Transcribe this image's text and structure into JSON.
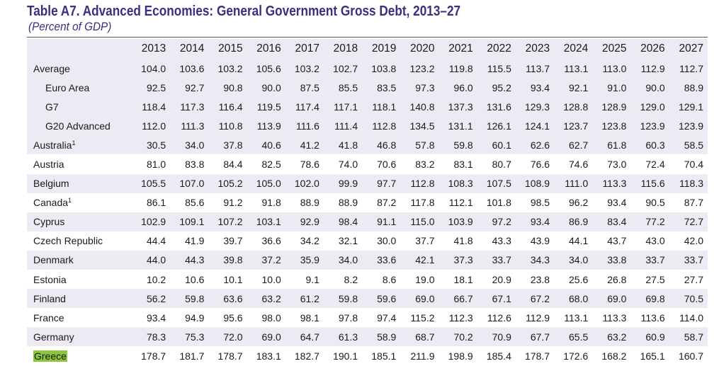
{
  "title": "Table A7. Advanced Economies: General Government Gross Debt, 2013–27",
  "subtitle": "(Percent of GDP)",
  "years": [
    "2013",
    "2014",
    "2015",
    "2016",
    "2017",
    "2018",
    "2019",
    "2020",
    "2021",
    "2022",
    "2023",
    "2024",
    "2025",
    "2026",
    "2027"
  ],
  "rows": [
    {
      "name": "Average",
      "note": "",
      "highlight": false,
      "values": [
        "104.0",
        "103.6",
        "103.2",
        "105.6",
        "103.2",
        "102.7",
        "103.8",
        "123.2",
        "119.8",
        "115.5",
        "113.7",
        "113.1",
        "113.0",
        "112.9",
        "112.7"
      ]
    },
    {
      "name": "Euro Area",
      "note": "",
      "highlight": false,
      "values": [
        "92.5",
        "92.7",
        "90.8",
        "90.0",
        "87.5",
        "85.5",
        "83.5",
        "97.3",
        "96.0",
        "95.2",
        "93.4",
        "92.1",
        "91.0",
        "90.0",
        "88.9"
      ]
    },
    {
      "name": "G7",
      "note": "",
      "highlight": false,
      "values": [
        "118.4",
        "117.3",
        "116.4",
        "119.5",
        "117.4",
        "117.1",
        "118.1",
        "140.8",
        "137.3",
        "131.6",
        "129.3",
        "128.8",
        "128.9",
        "129.0",
        "129.1"
      ]
    },
    {
      "name": "G20 Advanced",
      "note": "",
      "highlight": false,
      "values": [
        "112.0",
        "111.3",
        "110.8",
        "113.9",
        "111.6",
        "111.4",
        "112.8",
        "134.5",
        "131.1",
        "126.1",
        "124.1",
        "123.7",
        "123.8",
        "123.9",
        "123.9"
      ]
    },
    {
      "name": "Australia",
      "note": "1",
      "highlight": false,
      "values": [
        "30.5",
        "34.0",
        "37.8",
        "40.6",
        "41.2",
        "41.8",
        "46.8",
        "57.8",
        "59.8",
        "60.1",
        "62.6",
        "62.7",
        "61.8",
        "60.3",
        "58.5"
      ]
    },
    {
      "name": "Austria",
      "note": "",
      "highlight": false,
      "values": [
        "81.0",
        "83.8",
        "84.4",
        "82.5",
        "78.6",
        "74.0",
        "70.6",
        "83.2",
        "83.1",
        "80.7",
        "76.6",
        "74.6",
        "73.0",
        "72.4",
        "70.4"
      ]
    },
    {
      "name": "Belgium",
      "note": "",
      "highlight": false,
      "values": [
        "105.5",
        "107.0",
        "105.2",
        "105.0",
        "102.0",
        "99.9",
        "97.7",
        "112.8",
        "108.3",
        "107.5",
        "108.9",
        "111.0",
        "113.3",
        "115.6",
        "118.3"
      ]
    },
    {
      "name": "Canada",
      "note": "1",
      "highlight": false,
      "values": [
        "86.1",
        "85.6",
        "91.2",
        "91.8",
        "88.9",
        "88.9",
        "87.2",
        "117.8",
        "112.1",
        "101.8",
        "98.5",
        "96.2",
        "93.4",
        "90.5",
        "87.7"
      ]
    },
    {
      "name": "Cyprus",
      "note": "",
      "highlight": false,
      "values": [
        "102.9",
        "109.1",
        "107.2",
        "103.1",
        "92.9",
        "98.4",
        "91.1",
        "115.0",
        "103.9",
        "97.2",
        "93.4",
        "86.9",
        "83.4",
        "77.2",
        "72.7"
      ]
    },
    {
      "name": "Czech Republic",
      "note": "",
      "highlight": false,
      "values": [
        "44.4",
        "41.9",
        "39.7",
        "36.6",
        "34.2",
        "32.1",
        "30.0",
        "37.7",
        "41.8",
        "43.3",
        "43.9",
        "44.1",
        "43.7",
        "43.0",
        "42.0"
      ]
    },
    {
      "name": "Denmark",
      "note": "",
      "highlight": false,
      "values": [
        "44.0",
        "44.3",
        "39.8",
        "37.2",
        "35.9",
        "34.0",
        "33.6",
        "42.1",
        "37.3",
        "33.7",
        "34.3",
        "34.0",
        "33.8",
        "33.7",
        "33.7"
      ]
    },
    {
      "name": "Estonia",
      "note": "",
      "highlight": false,
      "values": [
        "10.2",
        "10.6",
        "10.1",
        "10.0",
        "9.1",
        "8.2",
        "8.6",
        "19.0",
        "18.1",
        "20.9",
        "23.8",
        "25.6",
        "26.8",
        "27.5",
        "27.7"
      ]
    },
    {
      "name": "Finland",
      "note": "",
      "highlight": false,
      "values": [
        "56.2",
        "59.8",
        "63.6",
        "63.2",
        "61.2",
        "59.8",
        "59.6",
        "69.0",
        "66.7",
        "67.1",
        "67.2",
        "68.0",
        "69.0",
        "69.8",
        "70.5"
      ]
    },
    {
      "name": "France",
      "note": "",
      "highlight": false,
      "values": [
        "93.4",
        "94.9",
        "95.6",
        "98.0",
        "98.1",
        "97.8",
        "97.4",
        "115.2",
        "112.3",
        "112.6",
        "112.9",
        "113.1",
        "113.3",
        "113.6",
        "114.0"
      ]
    },
    {
      "name": "Germany",
      "note": "",
      "highlight": false,
      "values": [
        "78.3",
        "75.3",
        "72.0",
        "69.0",
        "64.7",
        "61.3",
        "58.9",
        "68.7",
        "70.2",
        "70.9",
        "67.7",
        "65.5",
        "63.2",
        "60.9",
        "58.7"
      ]
    },
    {
      "name": "Greece",
      "note": "",
      "highlight": true,
      "values": [
        "178.7",
        "181.7",
        "178.7",
        "183.1",
        "182.7",
        "190.1",
        "185.1",
        "211.9",
        "198.9",
        "185.4",
        "178.7",
        "172.6",
        "168.2",
        "165.1",
        "160.7"
      ]
    }
  ]
}
